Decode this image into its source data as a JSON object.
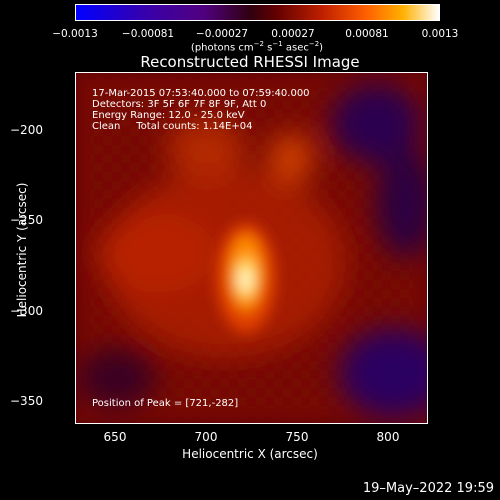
{
  "colorbar": {
    "ticks": [
      "−0.0013",
      "−0.00081",
      "−0.00027",
      "0.00027",
      "0.00081",
      "0.0013"
    ],
    "units_html": "(photons cm<sup style=\"font-size:7px\">−2</sup> s<sup style=\"font-size:7px\">−1</sup> asec<sup style=\"font-size:7px\">−2</sup>)"
  },
  "title": "Reconstructed RHESSI Image",
  "info": {
    "time_range": "17-Mar-2015 07:53:40.000 to 07:59:40.000",
    "detectors": "Detectors: 3F 5F 6F 7F 8F 9F, Att 0",
    "energy": "Energy Range: 12.0 - 25.0 keV",
    "method": "Clean     Total counts: 1.14E+04",
    "peak": "Position of Peak = [721,-282]"
  },
  "axes": {
    "xlabel": "Heliocentric X (arcsec)",
    "ylabel": "Heliocentric Y (arcsec)",
    "xticks": [
      "650",
      "700",
      "750",
      "800"
    ],
    "yticks": [
      "−200",
      "−250",
      "−300",
      "−350"
    ]
  },
  "timestamp": "19–May–2022 19:59"
}
